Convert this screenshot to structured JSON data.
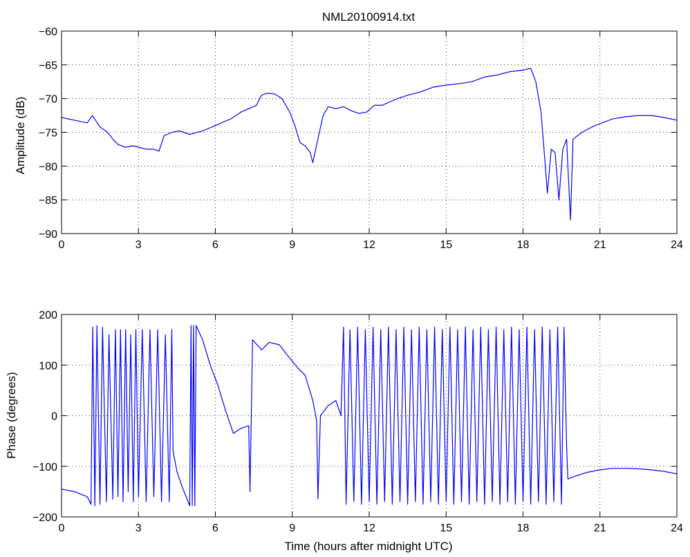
{
  "figure": {
    "title": "NML20100914.txt"
  },
  "colors": {
    "trace": "#0000ff",
    "axes": "#000000",
    "grid": "#000000",
    "background": "#ffffff"
  },
  "chart_data": [
    {
      "type": "line",
      "title": "NML20100914.txt",
      "xlabel": "",
      "ylabel": "Amplitude (dB)",
      "xlim": [
        0,
        24
      ],
      "ylim": [
        -90,
        -60
      ],
      "xticks": [
        0,
        3,
        6,
        9,
        12,
        15,
        18,
        21,
        24
      ],
      "yticks": [
        -90,
        -85,
        -80,
        -75,
        -70,
        -65,
        -60
      ],
      "grid": true,
      "series": [
        {
          "color": "#0000ff",
          "points": [
            [
              0,
              -72.8
            ],
            [
              0.5,
              -73.2
            ],
            [
              1.0,
              -73.6
            ],
            [
              1.2,
              -72.5
            ],
            [
              1.5,
              -74.2
            ],
            [
              1.8,
              -75.0
            ],
            [
              2.0,
              -76.0
            ],
            [
              2.2,
              -76.8
            ],
            [
              2.5,
              -77.2
            ],
            [
              2.8,
              -77.0
            ],
            [
              3.0,
              -77.2
            ],
            [
              3.3,
              -77.5
            ],
            [
              3.6,
              -77.5
            ],
            [
              3.8,
              -77.8
            ],
            [
              4.0,
              -75.5
            ],
            [
              4.3,
              -75.0
            ],
            [
              4.6,
              -74.8
            ],
            [
              5.0,
              -75.3
            ],
            [
              5.5,
              -74.8
            ],
            [
              6.0,
              -74.0
            ],
            [
              6.3,
              -73.5
            ],
            [
              6.6,
              -73.0
            ],
            [
              7.0,
              -72.0
            ],
            [
              7.3,
              -71.5
            ],
            [
              7.6,
              -71.0
            ],
            [
              7.8,
              -69.5
            ],
            [
              8.0,
              -69.2
            ],
            [
              8.3,
              -69.3
            ],
            [
              8.6,
              -70.0
            ],
            [
              8.9,
              -72.0
            ],
            [
              9.1,
              -74.0
            ],
            [
              9.3,
              -76.5
            ],
            [
              9.5,
              -77.0
            ],
            [
              9.7,
              -78.0
            ],
            [
              9.8,
              -79.5
            ],
            [
              10.0,
              -76.0
            ],
            [
              10.2,
              -72.5
            ],
            [
              10.4,
              -71.2
            ],
            [
              10.7,
              -71.5
            ],
            [
              11.0,
              -71.2
            ],
            [
              11.3,
              -71.8
            ],
            [
              11.6,
              -72.2
            ],
            [
              11.9,
              -72.0
            ],
            [
              12.2,
              -71.0
            ],
            [
              12.5,
              -71.0
            ],
            [
              12.8,
              -70.5
            ],
            [
              13.1,
              -70.0
            ],
            [
              13.5,
              -69.5
            ],
            [
              14.0,
              -69.0
            ],
            [
              14.5,
              -68.3
            ],
            [
              15.0,
              -68.0
            ],
            [
              15.5,
              -67.8
            ],
            [
              16.0,
              -67.5
            ],
            [
              16.5,
              -66.8
            ],
            [
              17.0,
              -66.5
            ],
            [
              17.5,
              -66.0
            ],
            [
              18.0,
              -65.8
            ],
            [
              18.3,
              -65.5
            ],
            [
              18.5,
              -67.5
            ],
            [
              18.7,
              -72.0
            ],
            [
              18.85,
              -79.0
            ],
            [
              18.95,
              -84.0
            ],
            [
              19.1,
              -77.5
            ],
            [
              19.25,
              -78.0
            ],
            [
              19.4,
              -85.0
            ],
            [
              19.55,
              -77.5
            ],
            [
              19.7,
              -76.0
            ],
            [
              19.85,
              -88.0
            ],
            [
              19.95,
              -76.0
            ],
            [
              20.3,
              -75.0
            ],
            [
              20.8,
              -74.0
            ],
            [
              21.5,
              -73.0
            ],
            [
              22.0,
              -72.7
            ],
            [
              22.5,
              -72.5
            ],
            [
              23.0,
              -72.5
            ],
            [
              23.5,
              -72.8
            ],
            [
              24.0,
              -73.2
            ]
          ]
        }
      ]
    },
    {
      "type": "line",
      "title": "",
      "xlabel": "Time (hours after midnight UTC)",
      "ylabel": "Phase (degrees)",
      "xlim": [
        0,
        24
      ],
      "ylim": [
        -200,
        200
      ],
      "xticks": [
        0,
        3,
        6,
        9,
        12,
        15,
        18,
        21,
        24
      ],
      "yticks": [
        -200,
        -100,
        0,
        100,
        200
      ],
      "grid": true,
      "series": [
        {
          "color": "#0000ff",
          "points": [
            [
              0,
              -145
            ],
            [
              0.5,
              -150
            ],
            [
              1.0,
              -160
            ],
            [
              1.15,
              -175
            ],
            [
              1.22,
              175
            ],
            [
              1.3,
              -178
            ],
            [
              1.38,
              178
            ],
            [
              1.5,
              -175
            ],
            [
              1.6,
              175
            ],
            [
              1.75,
              -170
            ],
            [
              1.85,
              160
            ],
            [
              2.0,
              -165
            ],
            [
              2.1,
              170
            ],
            [
              2.2,
              -160
            ],
            [
              2.3,
              170
            ],
            [
              2.4,
              -170
            ],
            [
              2.5,
              170
            ],
            [
              2.6,
              -150
            ],
            [
              2.7,
              160
            ],
            [
              2.8,
              -170
            ],
            [
              2.9,
              170
            ],
            [
              3.0,
              -160
            ],
            [
              3.15,
              170
            ],
            [
              3.3,
              -170
            ],
            [
              3.45,
              170
            ],
            [
              3.6,
              -160
            ],
            [
              3.75,
              170
            ],
            [
              3.9,
              -170
            ],
            [
              4.05,
              160
            ],
            [
              4.2,
              -170
            ],
            [
              4.3,
              170
            ],
            [
              4.35,
              -70
            ],
            [
              4.5,
              -110
            ],
            [
              4.7,
              -140
            ],
            [
              4.9,
              -165
            ],
            [
              5.0,
              -178
            ],
            [
              5.05,
              178
            ],
            [
              5.1,
              -178
            ],
            [
              5.15,
              178
            ],
            [
              5.2,
              -178
            ],
            [
              5.25,
              178
            ],
            [
              5.5,
              150
            ],
            [
              5.8,
              100
            ],
            [
              6.1,
              60
            ],
            [
              6.4,
              10
            ],
            [
              6.7,
              -35
            ],
            [
              7.0,
              -25
            ],
            [
              7.3,
              -20
            ],
            [
              7.35,
              -150
            ],
            [
              7.45,
              150
            ],
            [
              7.8,
              130
            ],
            [
              8.1,
              145
            ],
            [
              8.5,
              140
            ],
            [
              8.8,
              120
            ],
            [
              9.2,
              95
            ],
            [
              9.5,
              80
            ],
            [
              9.8,
              30
            ],
            [
              9.95,
              -10
            ],
            [
              10.0,
              -165
            ],
            [
              10.1,
              0
            ],
            [
              10.4,
              20
            ],
            [
              10.7,
              30
            ],
            [
              10.9,
              0
            ],
            [
              11.0,
              175
            ],
            [
              11.1,
              -175
            ],
            [
              11.25,
              170
            ],
            [
              11.4,
              -170
            ],
            [
              11.55,
              175
            ],
            [
              11.7,
              -175
            ],
            [
              11.85,
              170
            ],
            [
              12.0,
              -170
            ],
            [
              12.15,
              175
            ],
            [
              12.3,
              -175
            ],
            [
              12.45,
              170
            ],
            [
              12.6,
              -170
            ],
            [
              12.75,
              175
            ],
            [
              12.9,
              -175
            ],
            [
              13.05,
              170
            ],
            [
              13.2,
              -170
            ],
            [
              13.35,
              175
            ],
            [
              13.5,
              -175
            ],
            [
              13.65,
              170
            ],
            [
              13.8,
              -170
            ],
            [
              13.95,
              175
            ],
            [
              14.1,
              -175
            ],
            [
              14.25,
              170
            ],
            [
              14.4,
              -170
            ],
            [
              14.55,
              175
            ],
            [
              14.7,
              -175
            ],
            [
              14.85,
              170
            ],
            [
              15.0,
              -170
            ],
            [
              15.15,
              175
            ],
            [
              15.3,
              -175
            ],
            [
              15.45,
              170
            ],
            [
              15.6,
              -170
            ],
            [
              15.75,
              175
            ],
            [
              15.9,
              -175
            ],
            [
              16.05,
              170
            ],
            [
              16.2,
              -170
            ],
            [
              16.35,
              175
            ],
            [
              16.5,
              -175
            ],
            [
              16.65,
              170
            ],
            [
              16.8,
              -170
            ],
            [
              16.95,
              175
            ],
            [
              17.1,
              -175
            ],
            [
              17.25,
              170
            ],
            [
              17.4,
              -170
            ],
            [
              17.55,
              175
            ],
            [
              17.7,
              -175
            ],
            [
              17.85,
              170
            ],
            [
              18.0,
              -170
            ],
            [
              18.15,
              175
            ],
            [
              18.3,
              -175
            ],
            [
              18.45,
              170
            ],
            [
              18.6,
              -170
            ],
            [
              18.75,
              175
            ],
            [
              18.9,
              -175
            ],
            [
              19.05,
              170
            ],
            [
              19.2,
              -170
            ],
            [
              19.35,
              175
            ],
            [
              19.5,
              -175
            ],
            [
              19.6,
              175
            ],
            [
              19.7,
              -60
            ],
            [
              19.75,
              -125
            ],
            [
              20.0,
              -120
            ],
            [
              20.5,
              -112
            ],
            [
              21.0,
              -107
            ],
            [
              21.5,
              -104
            ],
            [
              22.0,
              -104
            ],
            [
              22.5,
              -105
            ],
            [
              23.0,
              -107
            ],
            [
              23.5,
              -110
            ],
            [
              24.0,
              -115
            ]
          ]
        }
      ]
    }
  ]
}
